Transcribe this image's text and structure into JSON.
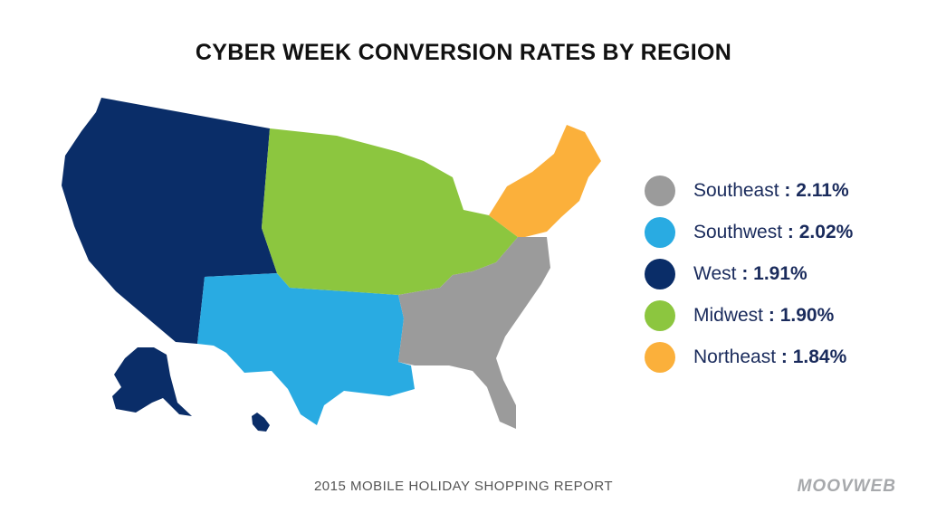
{
  "title": "CYBER WEEK CONVERSION RATES BY REGION",
  "legend": {
    "items": [
      {
        "region": "Southeast",
        "value": "2.11%",
        "color": "#9b9b9b"
      },
      {
        "region": "Southwest",
        "value": "2.02%",
        "color": "#29abe2"
      },
      {
        "region": "West",
        "value": "1.91%",
        "color": "#0a2d68"
      },
      {
        "region": "Midwest",
        "value": "1.90%",
        "color": "#8cc63f"
      },
      {
        "region": "Northeast",
        "value": "1.84%",
        "color": "#fbb03b"
      }
    ],
    "separator": ":"
  },
  "footer": "2015 MOBILE HOLIDAY SHOPPING REPORT",
  "brand": "MOOVWEB"
}
